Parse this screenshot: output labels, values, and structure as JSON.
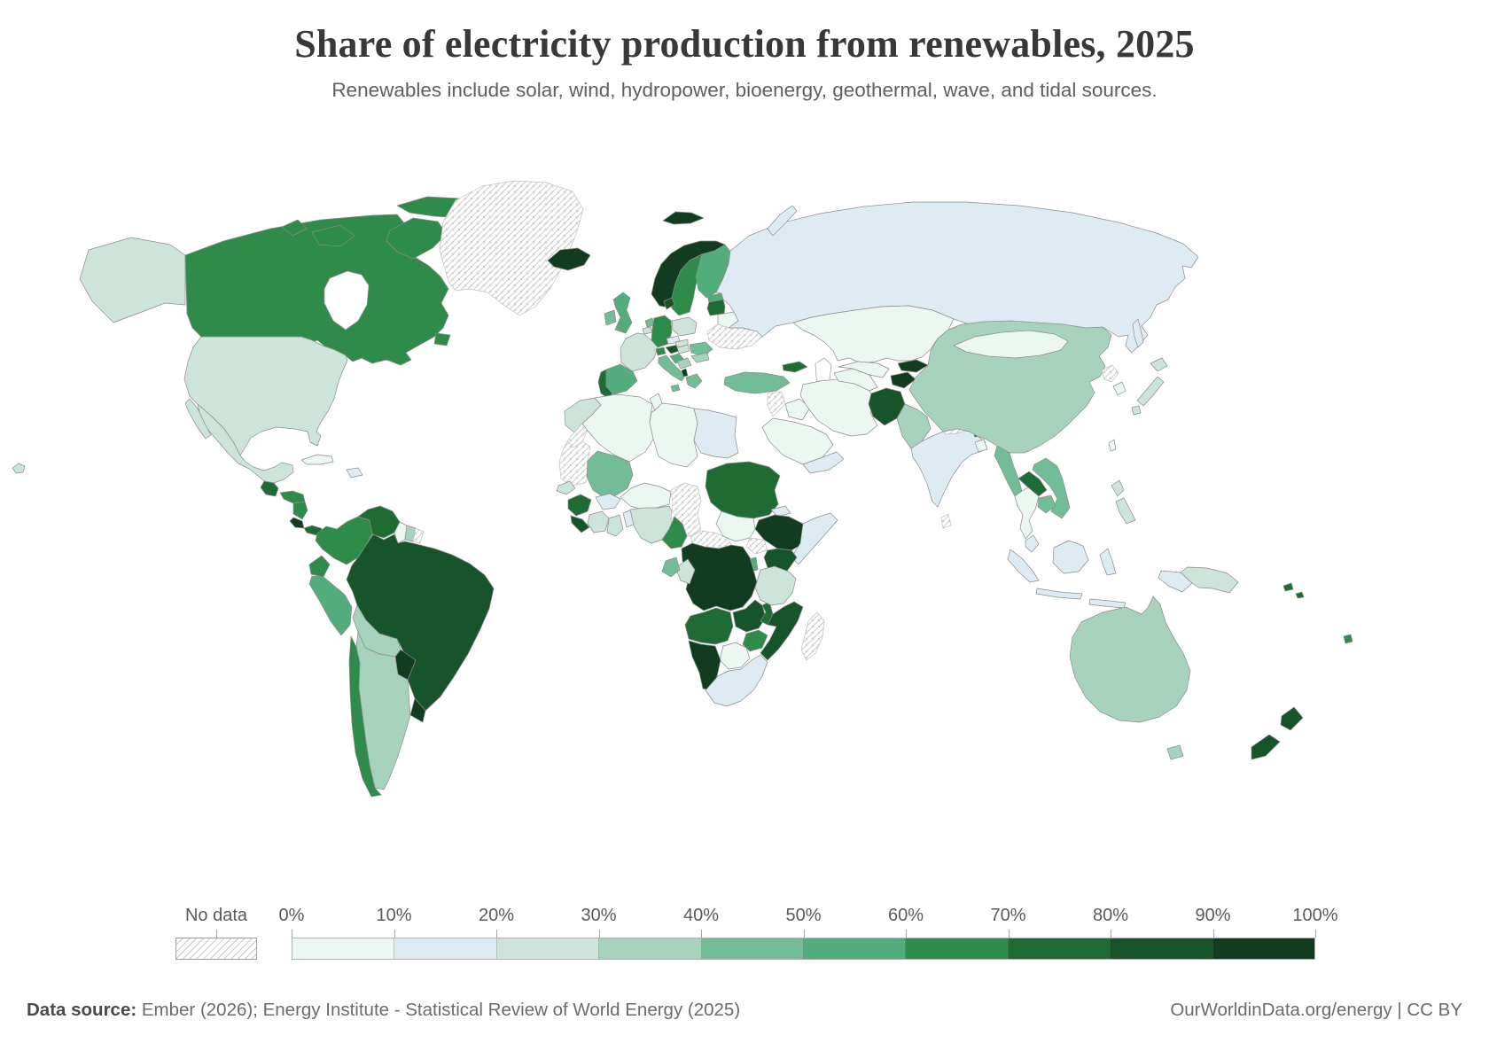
{
  "header": {
    "title": "Share of electricity production from renewables, 2025",
    "subtitle": "Renewables include solar, wind, hydropower, bioenergy, geothermal, wave, and tidal sources."
  },
  "legend": {
    "no_data_label": "No data",
    "tick_labels": [
      "0%",
      "10%",
      "20%",
      "30%",
      "40%",
      "50%",
      "60%",
      "70%",
      "80%",
      "90%",
      "100%"
    ]
  },
  "footer": {
    "source_label": "Data source:",
    "source_text": " Ember (2026); Energy Institute - Statistical Review of World Energy (2025)",
    "link_text": "OurWorldinData.org/energy | CC BY"
  },
  "chart_data": {
    "type": "choropleth-map",
    "title": "Share of electricity production from renewables, 2025",
    "metric": "Share of electricity production from renewables",
    "unit": "%",
    "year": 2025,
    "legend_position": "bottom",
    "color_buckets": [
      {
        "range": "0-10%",
        "color": "#edf7f2"
      },
      {
        "range": "10-20%",
        "color": "#dfebf2"
      },
      {
        "range": "20-30%",
        "color": "#cde4da"
      },
      {
        "range": "30-40%",
        "color": "#a7d3be"
      },
      {
        "range": "40-50%",
        "color": "#72bd98"
      },
      {
        "range": "50-60%",
        "color": "#53ac7c"
      },
      {
        "range": "60-70%",
        "color": "#2f8b49"
      },
      {
        "range": "70-80%",
        "color": "#1e6b33"
      },
      {
        "range": "80-90%",
        "color": "#17542a"
      },
      {
        "range": "90-100%",
        "color": "#123c1f"
      }
    ],
    "no_data_countries": [
      "Greenland",
      "Ukraine",
      "Western Sahara",
      "Mauritania",
      "Chad",
      "Central African Republic",
      "Madagascar",
      "French Guiana",
      "Nepal",
      "Sri Lanka",
      "North Korea",
      "Syria",
      "Uganda"
    ],
    "countries": {
      "Canada": 65,
      "United States": 23,
      "Mexico": 22,
      "Guatemala": 75,
      "Honduras": 62,
      "Nicaragua": 68,
      "Costa Rica": 97,
      "Panama": 72,
      "Cuba": 3,
      "Dominican Republic": 12,
      "Colombia": 66,
      "Venezuela": 73,
      "Guyana": 5,
      "Suriname": 35,
      "Ecuador": 65,
      "Peru": 54,
      "Brazil": 87,
      "Bolivia": 32,
      "Paraguay": 99,
      "Uruguay": 92,
      "Argentina": 33,
      "Chile": 66,
      "Iceland": 100,
      "Norway": 98,
      "Sweden": 66,
      "Finland": 55,
      "Denmark": 85,
      "United Kingdom": 50,
      "Ireland": 42,
      "Netherlands": 48,
      "Belgium": 28,
      "Germany": 62,
      "France": 28,
      "Spain": 56,
      "Portugal": 74,
      "Switzerland": 62,
      "Austria": 83,
      "Czechia": 15,
      "Poland": 28,
      "Italy": 45,
      "Croatia": 55,
      "Serbia": 38,
      "Albania": 99,
      "Greece": 46,
      "Hungary": 22,
      "Slovakia": 25,
      "Romania": 48,
      "Bulgaria": 35,
      "Estonia": 55,
      "Latvia": 72,
      "Belarus": 3,
      "Russia": 12,
      "Kazakhstan": 8,
      "Georgia": 78,
      "Turkey": 45,
      "Iraq": 2,
      "Saudi Arabia": 1,
      "Yemen": 12,
      "Iran": 6,
      "Turkmenistan": 1,
      "Uzbekistan": 6,
      "Kyrgyzstan": 90,
      "Tajikistan": 96,
      "Afghanistan": 85,
      "Pakistan": 33,
      "India": 18,
      "Bhutan": 100,
      "Bangladesh": 2,
      "China": 32,
      "Mongolia": 7,
      "Japan": 26,
      "South Korea": 9,
      "Taiwan": 6,
      "Myanmar": 45,
      "Laos": 72,
      "Thailand": 9,
      "Vietnam": 42,
      "Cambodia": 48,
      "Malaysia": 12,
      "Indonesia": 12,
      "Philippines": 22,
      "Papua New Guinea": 22,
      "Australia": 35,
      "New Zealand": 88,
      "Fiji": 65,
      "Solomon Islands": 72,
      "Morocco": 22,
      "Algeria": 2,
      "Tunisia": 5,
      "Libya": 3,
      "Egypt": 12,
      "Sudan": 72,
      "South Sudan": 5,
      "Eritrea": 12,
      "Ethiopia": 96,
      "Somalia": 12,
      "Kenya": 88,
      "Mali": 42,
      "Senegal": 22,
      "Guinea": 75,
      "Sierra Leone": 80,
      "Cote d'Ivoire": 28,
      "Ghana": 28,
      "Burkina Faso": 10,
      "Togo": 15,
      "Niger": 8,
      "Nigeria": 22,
      "Cameroon": 62,
      "Gabon": 45,
      "Congo": 25,
      "Democratic Republic of Congo": 96,
      "Rwanda": 50,
      "Tanzania": 28,
      "Angola": 72,
      "Zambia": 85,
      "Malawi": 78,
      "Mozambique": 82,
      "Zimbabwe": 62,
      "Botswana": 2,
      "Namibia": 96,
      "South Africa": 12
    }
  }
}
